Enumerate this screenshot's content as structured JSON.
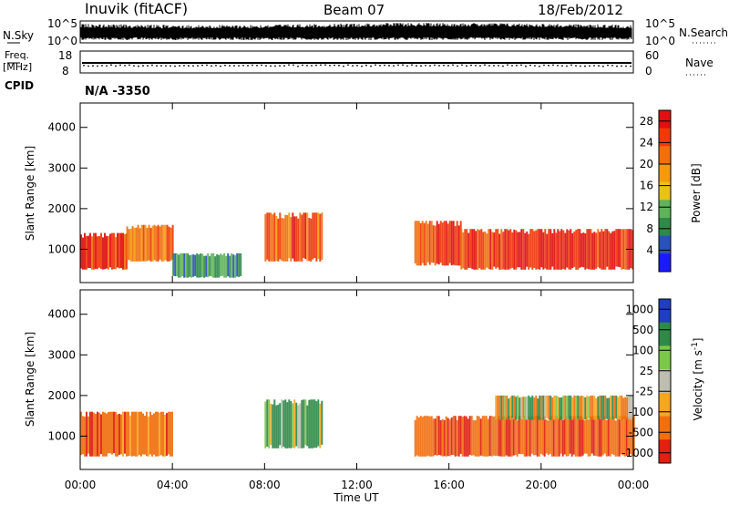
{
  "header": {
    "station": "Inuvik  (fitACF)",
    "beam": "Beam 07",
    "date": "18/Feb/2012"
  },
  "top_panels": {
    "nsky_label": "N.Sky",
    "nsky_ticks": [
      "10^5",
      "10^0"
    ],
    "nsearch_label": "N.Search",
    "nsearch_ticks": [
      "10^5",
      "10^0"
    ],
    "freq_label_1": "Freq.",
    "freq_label_2": "[MHz]",
    "freq_ticks": [
      "18",
      "8"
    ],
    "nave_label": "Nave",
    "nave_ticks": [
      "60",
      "0"
    ],
    "cpid_label": "CPID",
    "cpid_value": "N/A  -3350"
  },
  "colors": {
    "power": [
      "#1a1aff",
      "#2a52b8",
      "#2f8a4a",
      "#5fb35a",
      "#e8c21a",
      "#f59a10",
      "#f07010",
      "#ee3a0a",
      "#e01010"
    ],
    "velocity": [
      "#1f3fbf",
      "#2f8a4a",
      "#7cc84a",
      "#bdbdb0",
      "#f5a623",
      "#f07010",
      "#e02010"
    ]
  },
  "chart_data": [
    {
      "type": "heatmap",
      "title": "Power",
      "ylabel": "Slant Range [km]",
      "xlabel": "",
      "xlim": [
        "00:00",
        "24:00"
      ],
      "ylim": [
        180,
        4600
      ],
      "y_ticks": [
        "1000",
        "2000",
        "3000",
        "4000"
      ],
      "colorbar": {
        "label": "Power [dB]",
        "ticks": [
          "4",
          "8",
          "12",
          "16",
          "20",
          "24",
          "28"
        ],
        "range": [
          0,
          30
        ]
      },
      "echo_regions": [
        {
          "t_start": "00:00",
          "t_end": "02:00",
          "range_km": [
            500,
            1400
          ],
          "power_db": 28
        },
        {
          "t_start": "02:00",
          "t_end": "04:00",
          "range_km": [
            700,
            1600
          ],
          "power_db": 22
        },
        {
          "t_start": "04:00",
          "t_end": "07:00",
          "range_km": [
            300,
            900
          ],
          "power_db": 8
        },
        {
          "t_start": "08:00",
          "t_end": "10:30",
          "range_km": [
            700,
            1900
          ],
          "power_db": 24
        },
        {
          "t_start": "14:30",
          "t_end": "16:30",
          "range_km": [
            600,
            1700
          ],
          "power_db": 26
        },
        {
          "t_start": "16:30",
          "t_end": "24:00",
          "range_km": [
            500,
            1500
          ],
          "power_db": 28
        }
      ]
    },
    {
      "type": "heatmap",
      "title": "Velocity",
      "ylabel": "Slant Range [km]",
      "xlabel": "Time UT",
      "xlim": [
        "00:00",
        "24:00"
      ],
      "ylim": [
        180,
        4600
      ],
      "x_ticks": [
        "00:00",
        "04:00",
        "08:00",
        "12:00",
        "16:00",
        "20:00",
        "00:00"
      ],
      "y_ticks": [
        "1000",
        "2000",
        "3000",
        "4000"
      ],
      "colorbar": {
        "label": "Velocity [m s^-1]",
        "ticks": [
          "1000",
          "500",
          "100",
          "25",
          "-25",
          "-100",
          "-500",
          "-1000"
        ]
      },
      "echo_regions": [
        {
          "t_start": "00:00",
          "t_end": "04:00",
          "range_km": [
            500,
            1600
          ],
          "velocity": -300
        },
        {
          "t_start": "08:00",
          "t_end": "10:30",
          "range_km": [
            700,
            1900
          ],
          "velocity": 200
        },
        {
          "t_start": "14:30",
          "t_end": "24:00",
          "range_km": [
            500,
            1500
          ],
          "velocity": -400
        },
        {
          "t_start": "18:00",
          "t_end": "24:00",
          "range_km": [
            1400,
            2000
          ],
          "velocity": 0
        }
      ]
    }
  ]
}
